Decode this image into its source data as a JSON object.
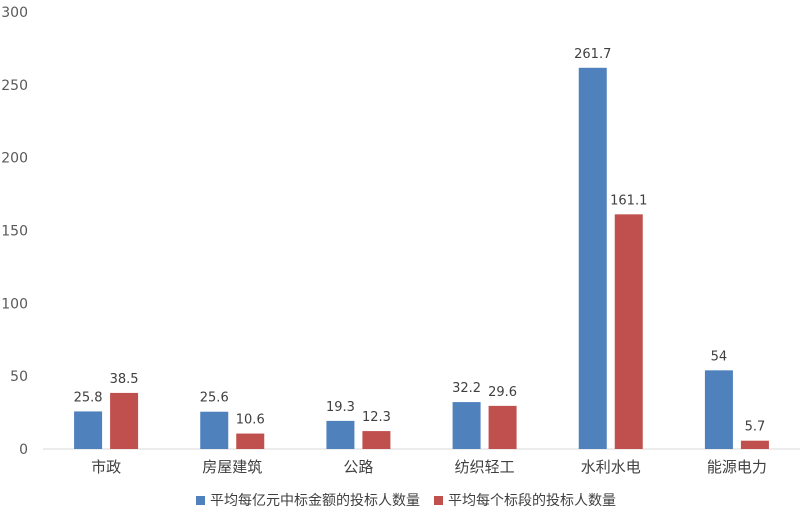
{
  "chart_data": {
    "type": "bar",
    "categories": [
      "市政",
      "房屋建筑",
      "公路",
      "纺织轻工",
      "水利水电",
      "能源电力"
    ],
    "series": [
      {
        "name": "平均每亿元中标金额的投标人数量",
        "color": "#4F81BD",
        "values": [
          25.8,
          25.6,
          19.3,
          32.2,
          261.7,
          54
        ],
        "labels": [
          "25.8",
          "25.6",
          "19.3",
          "32.2",
          "261.7",
          "54"
        ]
      },
      {
        "name": "平均每个标段的投标人数量",
        "color": "#C0504D",
        "values": [
          38.5,
          10.6,
          12.3,
          29.6,
          161.1,
          5.7
        ],
        "labels": [
          "38.5",
          "10.6",
          "12.3",
          "29.6",
          "161.1",
          "5.7"
        ]
      }
    ],
    "ylim": [
      0,
      300
    ],
    "yticks": [
      "0",
      "50",
      "100",
      "150",
      "200",
      "250",
      "300"
    ],
    "grid": false,
    "legend_position": "bottom"
  }
}
